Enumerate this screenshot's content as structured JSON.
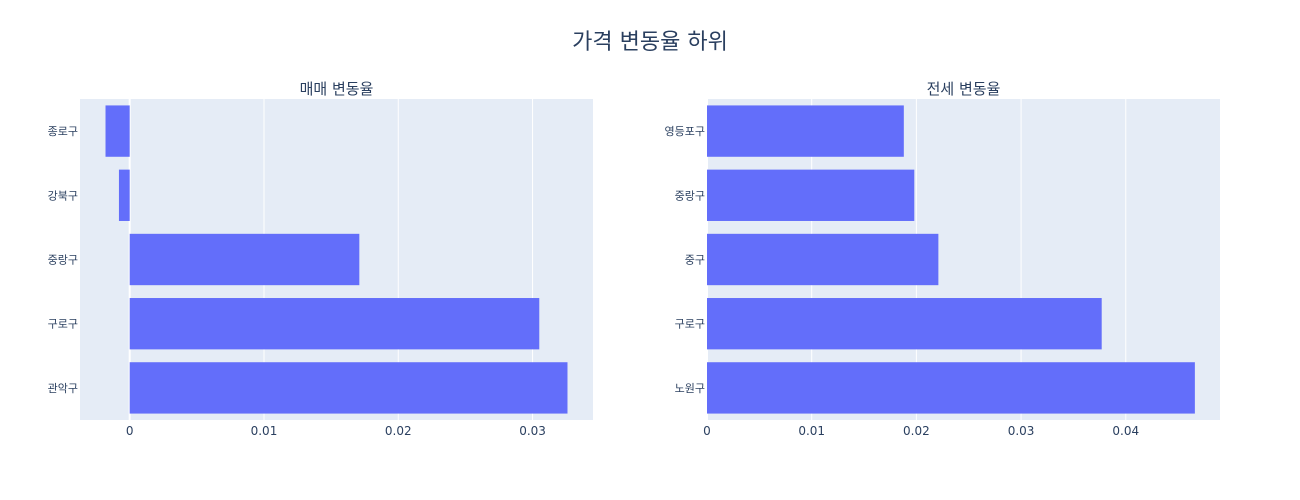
{
  "title": "가격 변동율 하위",
  "colors": {
    "plot_bg": "#E5ECF6",
    "grid": "#ffffff",
    "bar": "#636EFA",
    "text": "#2a3f5f"
  },
  "chart_data": [
    {
      "type": "bar",
      "orientation": "horizontal",
      "title": "매매 변동율",
      "categories": [
        "종로구",
        "강북구",
        "중랑구",
        "구로구",
        "관악구"
      ],
      "values": [
        -0.0018,
        -0.0008,
        0.0171,
        0.0305,
        0.0326
      ],
      "xlim": [
        -0.0037,
        0.0345
      ],
      "xticks": [
        0,
        0.01,
        0.02,
        0.03
      ],
      "xtick_labels": [
        "0",
        "0.01",
        "0.02",
        "0.03"
      ],
      "grid": true
    },
    {
      "type": "bar",
      "orientation": "horizontal",
      "title": "전세 변동율",
      "categories": [
        "영등포구",
        "중랑구",
        "중구",
        "구로구",
        "노원구"
      ],
      "values": [
        0.0188,
        0.0198,
        0.0221,
        0.0377,
        0.0466
      ],
      "xlim": [
        0,
        0.049
      ],
      "xticks": [
        0,
        0.01,
        0.02,
        0.03,
        0.04
      ],
      "xtick_labels": [
        "0",
        "0.01",
        "0.02",
        "0.03",
        "0.04"
      ],
      "grid": true
    }
  ]
}
